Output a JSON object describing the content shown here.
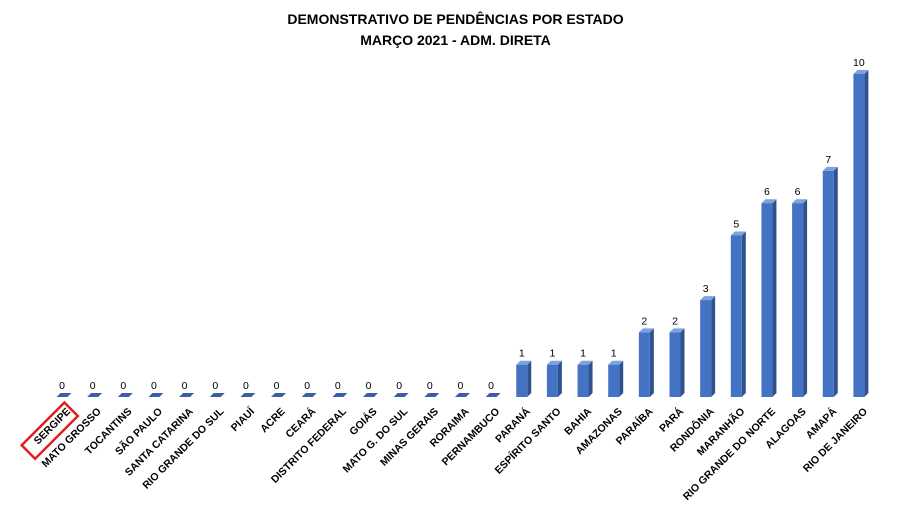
{
  "chart_data": {
    "type": "bar",
    "title": "DEMONSTRATIVO DE PENDÊNCIAS POR ESTADO",
    "subtitle": "MARÇO 2021 - ADM. DIRETA",
    "categories": [
      "SERGIPE",
      "MATO GROSSO",
      "TOCANTINS",
      "SÃO PAULO",
      "SANTA CATARINA",
      "RIO GRANDE DO SUL",
      "PIAUÍ",
      "ACRE",
      "CEARÁ",
      "DISTRITO  FEDERAL",
      "GOIÁS",
      "MATO G. DO SUL",
      "MINAS GERAIS",
      "RORAIMA",
      "PERNAMBUCO",
      "PARANÁ",
      "ESPÍRITO SANTO",
      "BAHIA",
      "AMAZONAS",
      "PARAÍBA",
      "PARÁ",
      "RONDÔNIA",
      "MARANHÃO",
      "RIO GRANDE DO NORTE",
      "ALAGOAS",
      "AMAPÁ",
      "RIO DE JANEIRO"
    ],
    "values": [
      0,
      0,
      0,
      0,
      0,
      0,
      0,
      0,
      0,
      0,
      0,
      0,
      0,
      0,
      0,
      1,
      1,
      1,
      1,
      2,
      2,
      3,
      5,
      6,
      6,
      7,
      10
    ],
    "ylim": [
      0,
      10
    ],
    "grid": false,
    "legend": "none",
    "bar_color": "#4472c4",
    "highlight": {
      "category": "SERGIPE",
      "color": "#e02020"
    }
  }
}
